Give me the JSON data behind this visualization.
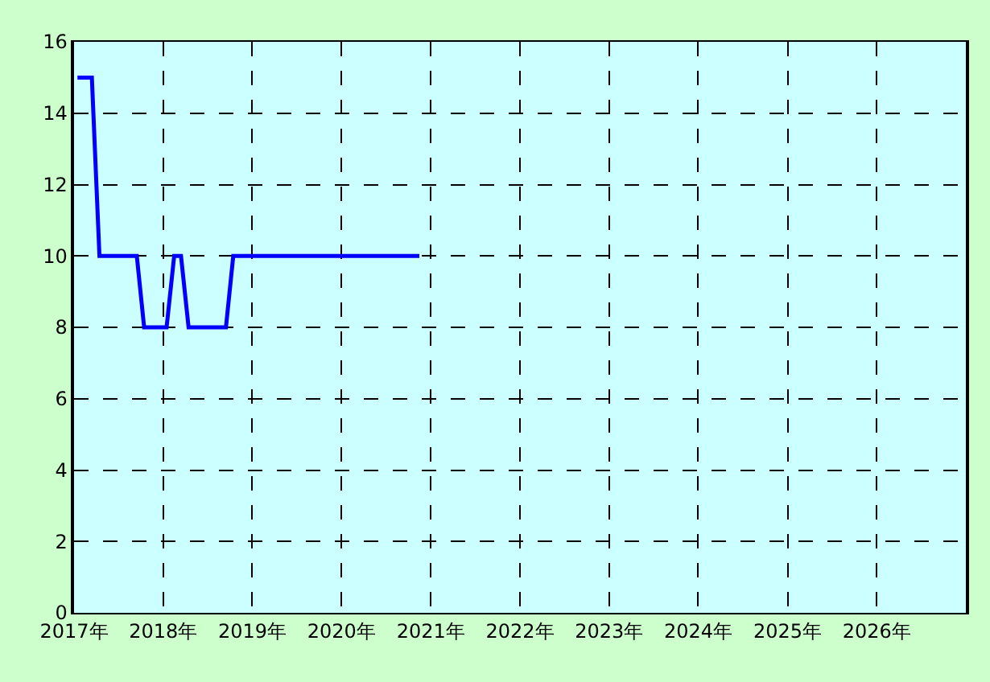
{
  "chart_data": {
    "type": "line",
    "x": [
      "2017-01-15",
      "2017-03-15",
      "2017-04-15",
      "2017-09-15",
      "2017-10-15",
      "2018-01-15",
      "2018-02-15",
      "2018-03-15",
      "2018-04-15",
      "2018-09-15",
      "2018-10-15",
      "2020-11-15"
    ],
    "series": [
      {
        "color": "#0000ff",
        "values": [
          15,
          15,
          10,
          10,
          8,
          8,
          10,
          10,
          8,
          8,
          10,
          10
        ]
      }
    ],
    "xlim": [
      "2017",
      "2027"
    ],
    "xticks": [
      {
        "value": "2017",
        "label": "2017年"
      },
      {
        "value": "2018",
        "label": "2018年"
      },
      {
        "value": "2019",
        "label": "2019年"
      },
      {
        "value": "2020",
        "label": "2020年"
      },
      {
        "value": "2021",
        "label": "2021年"
      },
      {
        "value": "2022",
        "label": "2022年"
      },
      {
        "value": "2023",
        "label": "2023年"
      },
      {
        "value": "2024",
        "label": "2024年"
      },
      {
        "value": "2025",
        "label": "2025年"
      },
      {
        "value": "2026",
        "label": "2026年"
      }
    ],
    "ylim": [
      0,
      16
    ],
    "yticks": [
      0,
      2,
      4,
      6,
      8,
      10,
      12,
      14,
      16
    ],
    "grid": true,
    "marker": "none",
    "line_style": "solid"
  }
}
